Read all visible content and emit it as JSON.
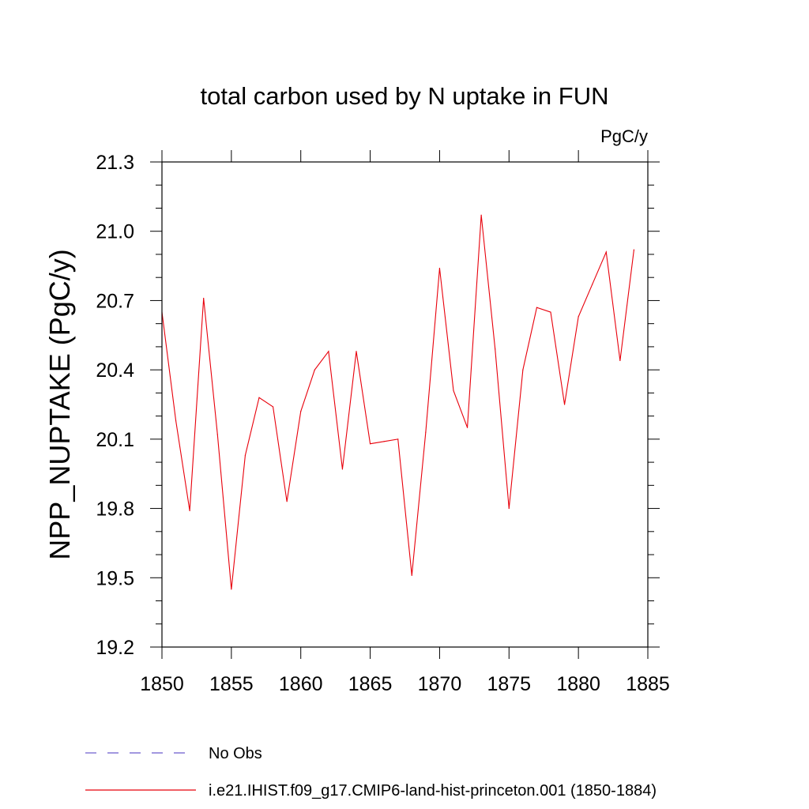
{
  "chart_data": {
    "type": "line",
    "title": "total carbon used by N uptake in FUN",
    "units_label": "PgC/y",
    "xlabel": "",
    "ylabel": "NPP_NUPTAKE  (PgC/y)",
    "xlim": [
      1850,
      1885
    ],
    "ylim": [
      19.2,
      21.3
    ],
    "xticks": [
      1850,
      1855,
      1860,
      1865,
      1870,
      1875,
      1880,
      1885
    ],
    "xtick_labels": [
      "1850",
      "1855",
      "1860",
      "1865",
      "1870",
      "1875",
      "1880",
      "1885"
    ],
    "yticks": [
      19.2,
      19.5,
      19.8,
      20.1,
      20.4,
      20.7,
      21.0,
      21.3
    ],
    "ytick_labels": [
      "19.2",
      "19.5",
      "19.8",
      "20.1",
      "20.4",
      "20.7",
      "21.0",
      "21.3"
    ],
    "grid": false,
    "legend_position": "bottom-left",
    "series": [
      {
        "name": "No Obs",
        "color": "#6a5acd",
        "dash": true,
        "x": [],
        "y": []
      },
      {
        "name": "i.e21.IHIST.f09_g17.CMIP6-land-hist-princeton.001 (1850-1884)",
        "color": "#e8000b",
        "dash": false,
        "x": [
          1850,
          1851,
          1852,
          1853,
          1854,
          1855,
          1856,
          1857,
          1858,
          1859,
          1860,
          1861,
          1862,
          1863,
          1864,
          1865,
          1866,
          1867,
          1868,
          1869,
          1870,
          1871,
          1872,
          1873,
          1874,
          1875,
          1876,
          1877,
          1878,
          1879,
          1880,
          1881,
          1882,
          1883,
          1884
        ],
        "y": [
          20.65,
          20.18,
          19.79,
          20.71,
          20.12,
          19.45,
          20.03,
          20.28,
          20.24,
          19.83,
          20.22,
          20.4,
          20.48,
          19.97,
          20.48,
          20.08,
          20.09,
          20.1,
          19.51,
          20.13,
          20.84,
          20.31,
          20.15,
          21.07,
          20.49,
          19.8,
          20.4,
          20.67,
          20.65,
          20.25,
          20.63,
          20.77,
          20.91,
          20.44,
          20.92
        ]
      }
    ]
  }
}
